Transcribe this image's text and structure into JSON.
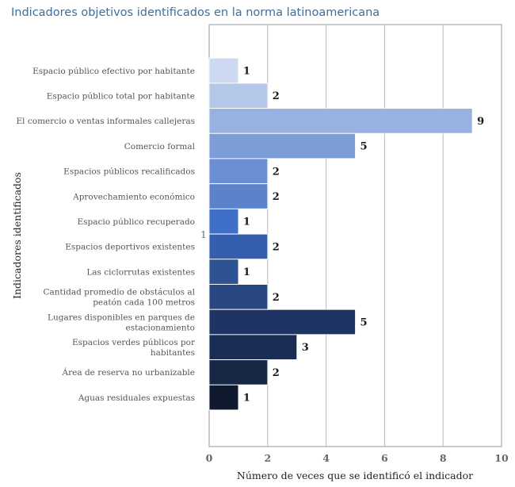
{
  "chart_data": {
    "type": "bar",
    "orientation": "horizontal",
    "title": "Indicadores objetivos identificados en la norma latinoamericana",
    "xlabel": "Número de veces que se identificó el indicador",
    "ylabel": "Indicadores identificados",
    "xlim": [
      0,
      10
    ],
    "x_ticks": [
      "0",
      "2",
      "4",
      "6",
      "8",
      "10"
    ],
    "grid": "vertical",
    "stray_label": "1",
    "categories": [
      "Espacio público efectivo por habitante",
      "Espacio público total por habitante",
      "El comercio o ventas informales callejeras",
      "Comercio formal",
      "Espacios públicos recalificados",
      "Aprovechamiento económico",
      "Espacio público recuperado",
      "Espacios deportivos existentes",
      "Las ciclorrutas existentes",
      "Cantidad promedio de obstáculos al peatón cada 100 metros",
      "Lugares disponibles en parques de estacionamiento",
      "Espacios verdes públicos por habitantes",
      "Área de reserva no urbanizable",
      "Aguas residuales expuestas"
    ],
    "category_lines": [
      [
        "Espacio público efectivo por habitante"
      ],
      [
        "Espacio público total por habitante"
      ],
      [
        "El comercio o ventas informales callejeras"
      ],
      [
        "Comercio formal"
      ],
      [
        "Espacios públicos recalificados"
      ],
      [
        "Aprovechamiento económico"
      ],
      [
        "Espacio público recuperado"
      ],
      [
        "Espacios deportivos existentes"
      ],
      [
        "Las ciclorrutas existentes"
      ],
      [
        "Cantidad promedio de obstáculos al",
        "peatón cada 100 metros"
      ],
      [
        "Lugares disponibles en parques de",
        "estacionamiento"
      ],
      [
        "Espacios verdes públicos por",
        "habitantes"
      ],
      [
        "Área de reserva no urbanizable"
      ],
      [
        "Aguas residuales expuestas"
      ]
    ],
    "values": [
      1,
      2,
      9,
      5,
      2,
      2,
      1,
      2,
      1,
      2,
      5,
      3,
      2,
      1
    ],
    "value_labels": [
      "1",
      "2",
      "9",
      "5",
      "2",
      "2",
      "1",
      "2",
      "1",
      "2",
      "5",
      "3",
      "2",
      "1"
    ],
    "colors": [
      "#cdd9f0",
      "#b6c8ea",
      "#97b1e1",
      "#7d9dd8",
      "#6b8fd4",
      "#5c82cc",
      "#3f6fc8",
      "#355fae",
      "#2f5293",
      "#28467f",
      "#1e3564",
      "#1a2e55",
      "#172846",
      "#0f1a2e"
    ]
  }
}
